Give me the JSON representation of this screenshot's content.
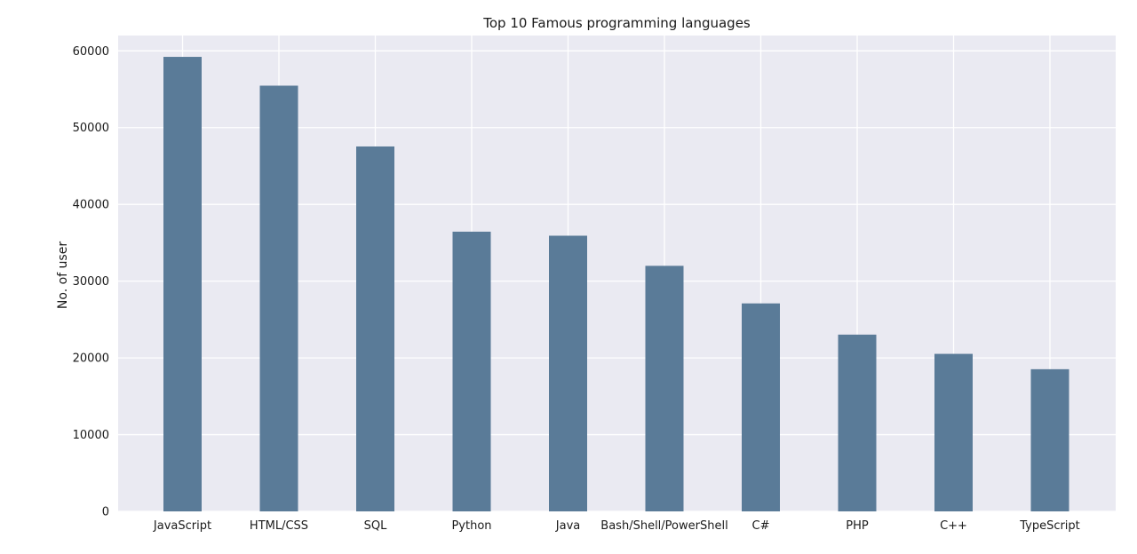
{
  "chart_data": {
    "type": "bar",
    "title": "Top 10 Famous programming languages",
    "xlabel": "",
    "ylabel": "No. of user",
    "categories": [
      "JavaScript",
      "HTML/CSS",
      "SQL",
      "Python",
      "Java",
      "Bash/Shell/PowerShell",
      "C#",
      "PHP",
      "C++",
      "TypeScript"
    ],
    "values": [
      59219,
      55466,
      47544,
      36443,
      35917,
      31991,
      27097,
      23030,
      20524,
      18523
    ],
    "ylim": [
      0,
      62000
    ],
    "yticks": [
      0,
      10000,
      20000,
      30000,
      40000,
      50000,
      60000
    ],
    "ytick_labels": [
      "0",
      "10000",
      "20000",
      "30000",
      "40000",
      "50000",
      "60000"
    ],
    "grid": true,
    "colors": {
      "bar": "#5a7b98",
      "plot_background": "#eaeaf2",
      "grid": "#ffffff"
    }
  }
}
